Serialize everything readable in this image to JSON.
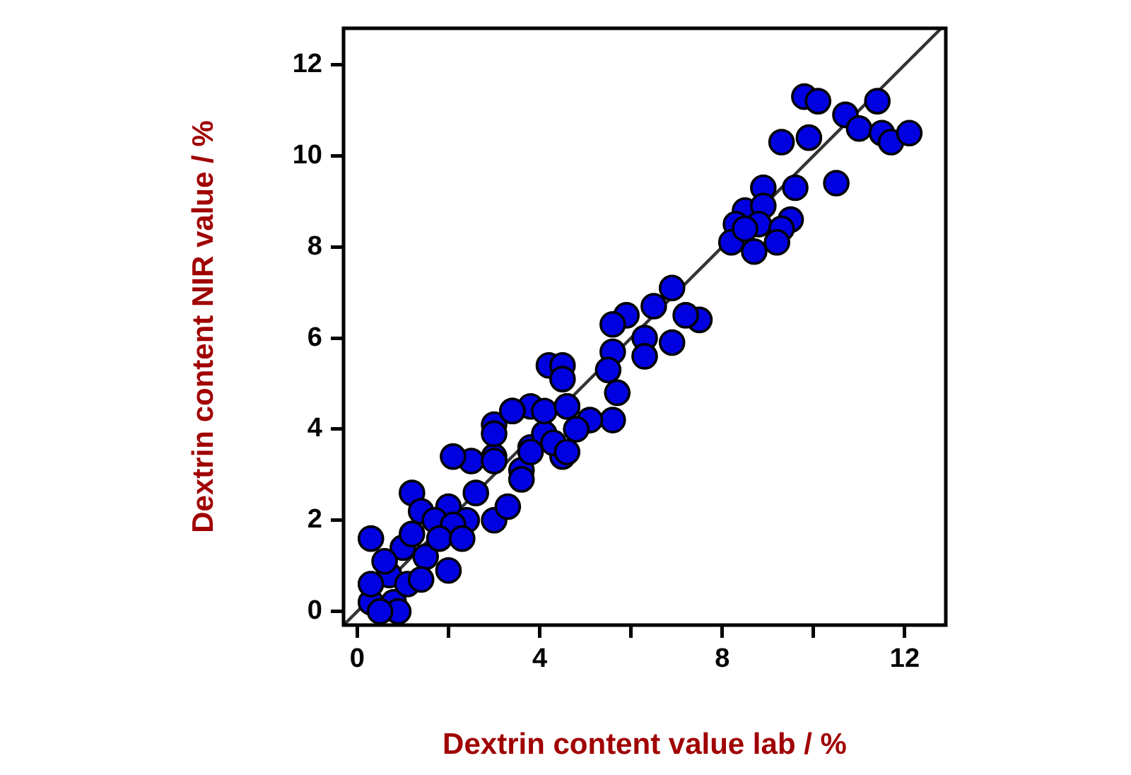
{
  "chart_data": {
    "type": "scatter",
    "xlabel": "Dextrin content value lab / %",
    "ylabel": "Dextrin content NIR value / %",
    "xlim": [
      -0.3,
      12.9
    ],
    "ylim": [
      -0.3,
      12.8
    ],
    "xticks": [
      0,
      {
        "value": 2,
        "label": null
      },
      4,
      {
        "value": 6,
        "label": null
      },
      8,
      {
        "value": 10,
        "label": null
      },
      12
    ],
    "yticks": [
      0,
      2,
      4,
      6,
      8,
      10,
      12
    ],
    "grid": false,
    "legend": false,
    "marker": "circle",
    "series": [
      {
        "color": "#0000e0",
        "x": [
          9.8,
          10.1,
          9.3,
          9.9,
          10.7,
          11.0,
          11.4,
          11.5,
          11.7,
          12.1,
          10.5,
          8.9,
          9.6,
          8.5,
          8.9,
          8.3,
          8.8,
          9.5,
          9.3,
          8.2,
          8.7,
          9.2,
          8.5,
          6.9,
          6.5,
          5.9,
          5.6,
          7.5,
          7.2,
          6.3,
          6.9,
          6.3,
          5.6,
          5.5,
          5.7,
          5.6,
          4.2,
          4.5,
          4.5,
          4.6,
          5.1,
          3.8,
          3.0,
          3.8,
          4.5,
          3.0,
          3.6,
          4.1,
          3.4,
          4.8,
          4.3,
          2.5,
          2.1,
          3.0,
          3.6,
          1.2,
          2.0,
          1.4,
          2.6,
          2.4,
          0.3,
          1.0,
          2.0,
          1.5,
          0.7,
          0.3,
          0.3,
          0.8,
          0.9,
          1.7,
          2.1,
          3.0,
          3.3,
          3.8,
          4.6,
          3.0,
          3.4,
          4.1,
          4.6,
          1.1,
          0.6,
          1.2,
          1.8,
          0.5,
          1.4,
          2.3
        ],
        "values": [
          11.3,
          11.2,
          10.3,
          10.4,
          10.9,
          10.6,
          11.2,
          10.5,
          10.3,
          10.5,
          9.4,
          9.3,
          9.3,
          8.8,
          8.9,
          8.5,
          8.5,
          8.6,
          8.4,
          8.1,
          7.9,
          8.1,
          8.4,
          7.1,
          6.7,
          6.5,
          6.3,
          6.4,
          6.5,
          6.0,
          5.9,
          5.6,
          5.7,
          5.3,
          4.8,
          4.2,
          5.4,
          5.4,
          5.1,
          4.5,
          4.2,
          4.5,
          4.1,
          3.6,
          3.4,
          3.4,
          3.1,
          3.9,
          4.4,
          4.0,
          3.7,
          3.3,
          3.4,
          3.3,
          2.9,
          2.6,
          2.3,
          2.2,
          2.6,
          2.0,
          1.6,
          1.4,
          0.9,
          1.2,
          0.8,
          0.2,
          0.6,
          0.2,
          0.0,
          2.0,
          1.9,
          2.0,
          2.3,
          3.5,
          3.5,
          3.9,
          4.4,
          4.4,
          4.5,
          0.6,
          1.1,
          1.7,
          1.6,
          0.0,
          0.7,
          1.6
        ]
      },
      {
        "type": "line",
        "color": "#333333",
        "line_style": "solid",
        "marker": "none",
        "x": [
          -0.3,
          12.8
        ],
        "values": [
          -0.3,
          12.8
        ]
      }
    ]
  }
}
